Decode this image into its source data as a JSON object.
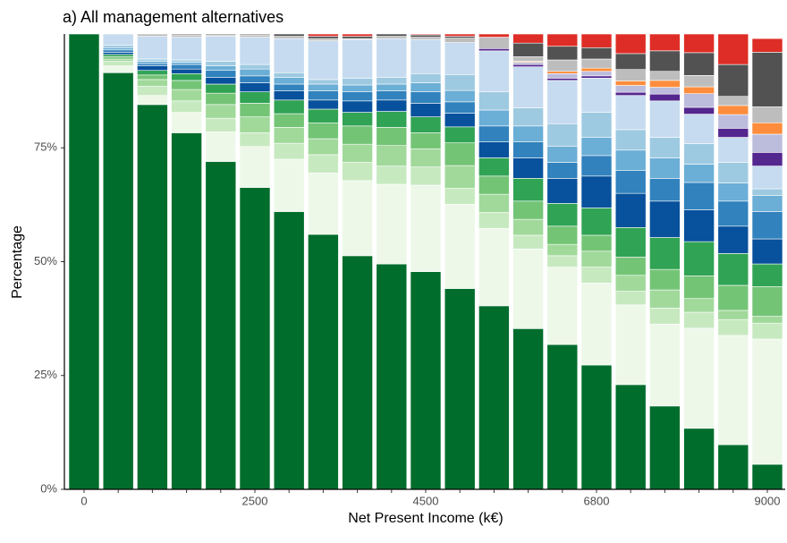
{
  "chart_data": {
    "type": "stacked_bar",
    "title": "a) All management alternatives",
    "x_label": "Net Present Income (k€)",
    "y_label": "Percentage",
    "categories": [
      "0",
      null,
      null,
      null,
      null,
      "2500",
      null,
      null,
      null,
      null,
      "4500",
      null,
      null,
      null,
      null,
      "6800",
      null,
      null,
      null,
      null,
      "9000"
    ],
    "ylim": [
      0,
      100
    ],
    "yticks": [
      {
        "value": 0,
        "label": "0%"
      },
      {
        "value": 25,
        "label": "25%"
      },
      {
        "value": 50,
        "label": "50%"
      },
      {
        "value": 75,
        "label": "75%"
      }
    ],
    "grid": false,
    "series": [
      {
        "color": "#006d2c",
        "values": [
          100,
          91.5,
          84.5,
          78.3,
          72,
          66.3,
          61,
          56,
          51.3,
          49.5,
          47.8,
          44.1,
          40.3,
          35.3,
          31.8,
          27.3,
          23,
          18.3,
          13.4,
          9.8,
          5.5
        ]
      },
      {
        "color": "#edf8e9",
        "values": [
          0,
          1.5,
          2,
          4.5,
          6.5,
          9,
          11.5,
          13.5,
          16.5,
          17.5,
          19,
          18.5,
          17,
          17.5,
          17,
          18,
          17.5,
          18,
          22,
          24,
          27.5
        ]
      },
      {
        "color": "#c7e9c0",
        "values": [
          0,
          1,
          2,
          2.5,
          3,
          3,
          3.5,
          4,
          4,
          4,
          4,
          3.5,
          3.5,
          3,
          2.5,
          3.5,
          3,
          3.5,
          3.5,
          3.5,
          3.5
        ]
      },
      {
        "color": "#a1d99b",
        "values": [
          0,
          0.5,
          1.5,
          2.5,
          3,
          3.5,
          3.5,
          3.5,
          4,
          4.5,
          4,
          5,
          4,
          3.5,
          2.5,
          3.5,
          3.5,
          4,
          3,
          2,
          1.5
        ]
      },
      {
        "color": "#74c476",
        "values": [
          0,
          0.5,
          1,
          2,
          2.5,
          3,
          3,
          3.5,
          4,
          4,
          3.5,
          5,
          4,
          4,
          4,
          3.5,
          4,
          4.5,
          5,
          5.5,
          6.5
        ]
      },
      {
        "color": "#31a354",
        "values": [
          0,
          0.5,
          1,
          1.5,
          2,
          2.5,
          3,
          3,
          3,
          3.5,
          3.5,
          3.5,
          4,
          5,
          5,
          6,
          6.5,
          7,
          7.5,
          7,
          5
        ]
      },
      {
        "color": "#08519c",
        "values": [
          0,
          0.5,
          1,
          1,
          1.5,
          2,
          2,
          2,
          2.5,
          2.5,
          3,
          3,
          3.5,
          4.5,
          5.5,
          7,
          7.5,
          8,
          7,
          6,
          5.5
        ]
      },
      {
        "color": "#3182bd",
        "values": [
          0,
          0.5,
          0.5,
          1,
          1.5,
          1.5,
          1.5,
          2,
          2,
          2,
          2.5,
          2.5,
          3.5,
          3.5,
          3.5,
          4.5,
          5,
          5,
          6,
          5.5,
          6
        ]
      },
      {
        "color": "#6baed6",
        "values": [
          0,
          0.5,
          0.5,
          0.5,
          1,
          1.5,
          1.5,
          1.5,
          1.5,
          1.5,
          2,
          2.5,
          3.5,
          3.5,
          3.5,
          4,
          4.5,
          4.5,
          4,
          4,
          3.5
        ]
      },
      {
        "color": "#9ecae1",
        "values": [
          0,
          0.5,
          0.5,
          0.5,
          1,
          1,
          1,
          1,
          1.5,
          1.5,
          2,
          3.5,
          4,
          4,
          5,
          5.5,
          4.5,
          4.5,
          4.5,
          4.5,
          1.5
        ]
      },
      {
        "color": "#c6dbef",
        "values": [
          0,
          2.5,
          5,
          5,
          5.5,
          6,
          7.5,
          8.5,
          8.5,
          8.5,
          7.5,
          7,
          9,
          9,
          9.5,
          7.5,
          7.5,
          8,
          6.5,
          5.5,
          5
        ]
      },
      {
        "color": "#54278f",
        "values": [
          0,
          0,
          0,
          0,
          0,
          0,
          0,
          0,
          0,
          0,
          0,
          0,
          0.5,
          0.5,
          0.5,
          0.5,
          0.7,
          1.5,
          1.5,
          2,
          3
        ]
      },
      {
        "color": "#bcbddc",
        "values": [
          0,
          0,
          0,
          0,
          0,
          0,
          0,
          0,
          0,
          0,
          0,
          0,
          0,
          0.5,
          1,
          1,
          1.5,
          1.5,
          3,
          3,
          4
        ]
      },
      {
        "color": "#fd8d3c",
        "values": [
          0,
          0,
          0,
          0,
          0,
          0,
          0,
          0,
          0,
          0,
          0,
          0,
          0,
          0.2,
          0.5,
          0.7,
          1,
          1.5,
          1.5,
          2,
          2.5
        ]
      },
      {
        "color": "#bdbdbd",
        "values": [
          0,
          0,
          0.5,
          0.5,
          0.3,
          0.5,
          0.5,
          0.5,
          0.2,
          0.5,
          0.5,
          1,
          2.5,
          1,
          2.5,
          2,
          2.5,
          2,
          2.5,
          2,
          3.5
        ]
      },
      {
        "color": "#525252",
        "values": [
          0,
          0,
          0,
          0.2,
          0.2,
          0.2,
          0.5,
          0.5,
          0.5,
          0.5,
          0.5,
          0.4,
          0,
          3,
          3,
          2.5,
          3.5,
          4.5,
          5,
          7,
          12
        ]
      },
      {
        "color": "#de2d26",
        "values": [
          0,
          0,
          0,
          0,
          0,
          0,
          0,
          0.5,
          0.5,
          0,
          0.2,
          0.5,
          0.7,
          2,
          2.7,
          3,
          4.3,
          3.7,
          4.1,
          6.7,
          3
        ]
      }
    ]
  }
}
